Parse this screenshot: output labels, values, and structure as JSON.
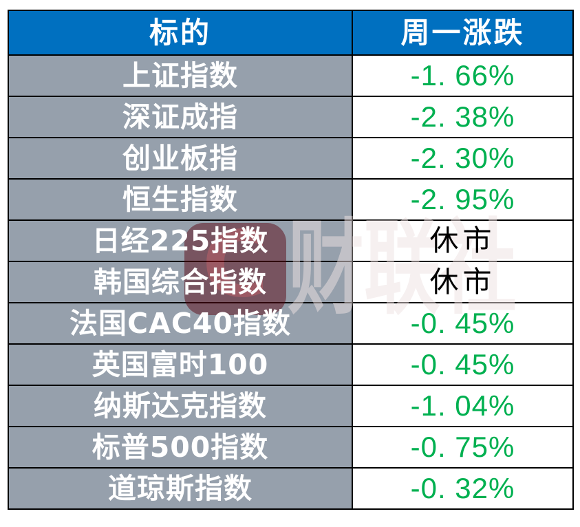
{
  "table": {
    "columns": [
      {
        "label": "标的"
      },
      {
        "label": "周一涨跌"
      }
    ],
    "rows": [
      {
        "name": "上证指数",
        "change": "-1. 66%",
        "state": "down"
      },
      {
        "name": "深证成指",
        "change": "-2. 38%",
        "state": "down"
      },
      {
        "name": "创业板指",
        "change": "-2. 30%",
        "state": "down"
      },
      {
        "name": "恒生指数",
        "change": "-2. 95%",
        "state": "down"
      },
      {
        "name": "日经225指数",
        "change": "休市",
        "state": "closed"
      },
      {
        "name": "韩国综合指数",
        "change": "休市",
        "state": "closed"
      },
      {
        "name": "法国CAC40指数",
        "change": "-0. 45%",
        "state": "down"
      },
      {
        "name": "英国富时100",
        "change": "-0. 45%",
        "state": "down"
      },
      {
        "name": "纳斯达克指数",
        "change": "-1. 04%",
        "state": "down"
      },
      {
        "name": "标普500指数",
        "change": "-0. 75%",
        "state": "down"
      },
      {
        "name": "道琼斯指数",
        "change": "-0. 32%",
        "state": "down"
      }
    ]
  },
  "watermark": {
    "logo_letter": "C",
    "brand_text": "财联社"
  },
  "colors": {
    "header_bg": "#0070C0",
    "header_text": "#FFFFFF",
    "label_bg": "#96A0AC",
    "label_text": "#FFFFFF",
    "value_bg": "#FFFFFF",
    "down_green": "#00B050",
    "closed_text": "#000000",
    "border": "#000000",
    "watermark_red": "#5C0A16"
  },
  "chart_data": {
    "type": "table",
    "title": "周一各指数涨跌",
    "columns": [
      "标的",
      "周一涨跌"
    ],
    "rows": [
      [
        "上证指数",
        "-1.66%"
      ],
      [
        "深证成指",
        "-2.38%"
      ],
      [
        "创业板指",
        "-2.30%"
      ],
      [
        "恒生指数",
        "-2.95%"
      ],
      [
        "日经225指数",
        "休市"
      ],
      [
        "韩国综合指数",
        "休市"
      ],
      [
        "法国CAC40指数",
        "-0.45%"
      ],
      [
        "英国富时100",
        "-0.45%"
      ],
      [
        "纳斯达克指数",
        "-1.04%"
      ],
      [
        "标普500指数",
        "-0.75%"
      ],
      [
        "道琼斯指数",
        "-0.32%"
      ]
    ],
    "changes_pct": [
      -1.66,
      -2.38,
      -2.3,
      -2.95,
      null,
      null,
      -0.45,
      -0.45,
      -1.04,
      -0.75,
      -0.32
    ]
  }
}
